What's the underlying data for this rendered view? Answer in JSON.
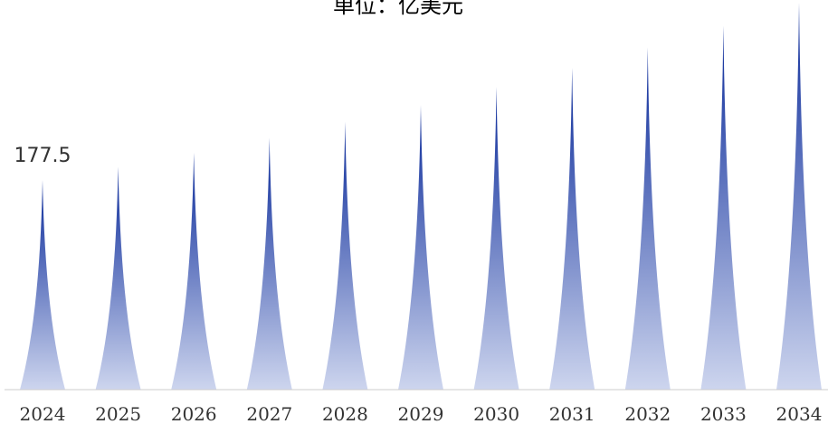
{
  "chart_data": {
    "type": "bar",
    "title": "单位：亿美元",
    "categories": [
      "2024",
      "2025",
      "2026",
      "2027",
      "2028",
      "2029",
      "2030",
      "2031",
      "2032",
      "2033",
      "2034"
    ],
    "values": [
      177.5,
      188.7,
      200.6,
      213.3,
      226.8,
      241.1,
      256.4,
      272.6,
      289.9,
      308.2,
      327.7
    ],
    "data_labels": [
      "177.5",
      "",
      "",
      "",
      "",
      "",
      "",
      "",
      "",
      "",
      ""
    ],
    "ylim": [
      0,
      330
    ],
    "bar_style": "pictorial-spike",
    "gradient_top_color": "#0a2a9a",
    "gradient_bottom_color": "#cdd5ee",
    "axis_color": "#cccccc",
    "grid": false,
    "legend": "none"
  }
}
